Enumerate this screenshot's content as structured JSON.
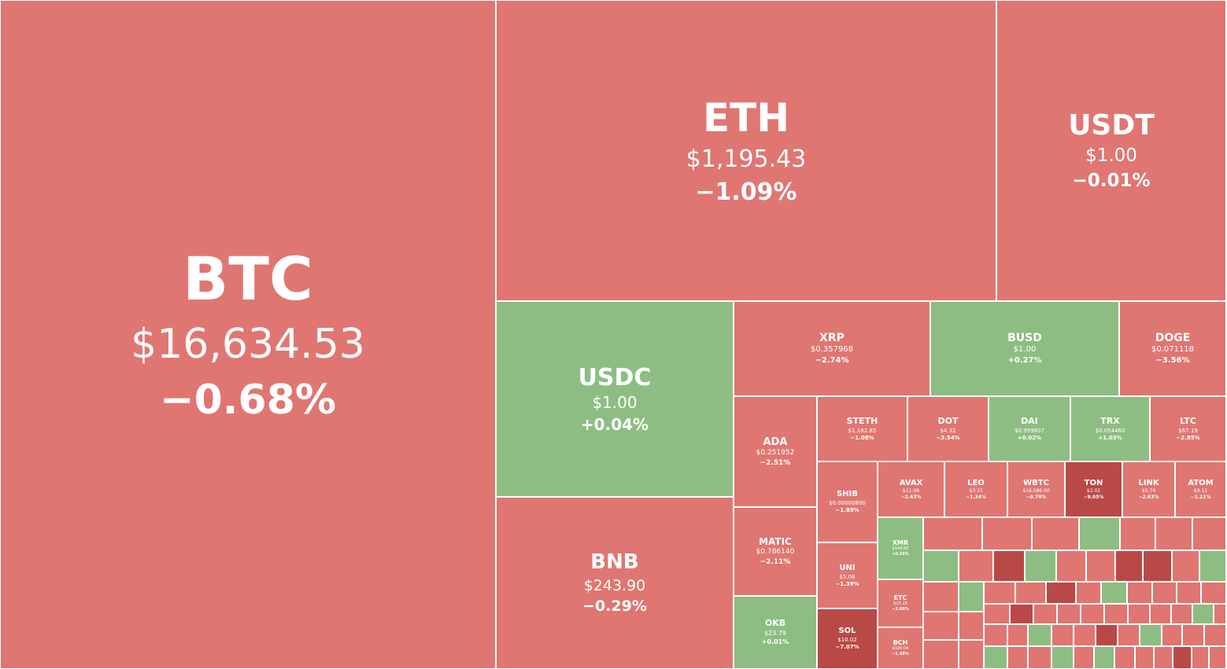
{
  "colors": {
    "negative": "#df7672",
    "negative_strong": "#b94947",
    "positive": "#8dbd83",
    "border": "#ffffff",
    "text": "#ffffff"
  },
  "chart_data": {
    "type": "treemap",
    "title": "",
    "size_measure": "market capitalization",
    "color_measure": "24h price change",
    "items": [
      {
        "symbol": "BTC",
        "price": "$16,634.53",
        "change": "−0.68%",
        "change_value": -0.68
      },
      {
        "symbol": "ETH",
        "price": "$1,195.43",
        "change": "−1.09%",
        "change_value": -1.09
      },
      {
        "symbol": "USDT",
        "price": "$1.00",
        "change": "−0.01%",
        "change_value": -0.01
      },
      {
        "symbol": "USDC",
        "price": "$1.00",
        "change": "+0.04%",
        "change_value": 0.04
      },
      {
        "symbol": "BNB",
        "price": "$243.90",
        "change": "−0.29%",
        "change_value": -0.29
      },
      {
        "symbol": "XRP",
        "price": "$0.357968",
        "change": "−2.74%",
        "change_value": -2.74
      },
      {
        "symbol": "BUSD",
        "price": "$1.00",
        "change": "+0.27%",
        "change_value": 0.27
      },
      {
        "symbol": "DOGE",
        "price": "$0.071118",
        "change": "−3.56%",
        "change_value": -3.56
      },
      {
        "symbol": "ADA",
        "price": "$0.251952",
        "change": "−2.51%",
        "change_value": -2.51
      },
      {
        "symbol": "MATIC",
        "price": "$0.786140",
        "change": "−2.11%",
        "change_value": -2.11
      },
      {
        "symbol": "OKB",
        "price": "$23.79",
        "change": "+0.01%",
        "change_value": 0.01
      },
      {
        "symbol": "STETH",
        "price": "$1,182.85",
        "change": "−1.08%",
        "change_value": -1.08
      },
      {
        "symbol": "DOT",
        "price": "$4.32",
        "change": "−3.54%",
        "change_value": -3.54
      },
      {
        "symbol": "DAI",
        "price": "$0.999807",
        "change": "+0.02%",
        "change_value": 0.02
      },
      {
        "symbol": "TRX",
        "price": "$0.054460",
        "change": "+1.03%",
        "change_value": 1.03
      },
      {
        "symbol": "LTC",
        "price": "$67.19",
        "change": "−2.85%",
        "change_value": -2.85
      },
      {
        "symbol": "SHIB",
        "price": "$0.00000800",
        "change": "−1.89%",
        "change_value": -1.89
      },
      {
        "symbol": "UNI",
        "price": "$5.08",
        "change": "−1.39%",
        "change_value": -1.39
      },
      {
        "symbol": "SOL",
        "price": "$10.02",
        "change": "−7.07%",
        "change_value": -7.07
      },
      {
        "symbol": "AVAX",
        "price": "$11.08",
        "change": "−2.43%",
        "change_value": -2.43
      },
      {
        "symbol": "LEO",
        "price": "$3.33",
        "change": "−1.34%",
        "change_value": -1.34
      },
      {
        "symbol": "WBTC",
        "price": "$16,586.00",
        "change": "−0.76%",
        "change_value": -0.76
      },
      {
        "symbol": "TON",
        "price": "$2.02",
        "change": "−9.05%",
        "change_value": -9.05
      },
      {
        "symbol": "LINK",
        "price": "$5.74",
        "change": "−2.63%",
        "change_value": -2.63
      },
      {
        "symbol": "ATOM",
        "price": "$9.12",
        "change": "−1.21%",
        "change_value": -1.21
      },
      {
        "symbol": "XMR",
        "price": "$144.90",
        "change": "+0.34%",
        "change_value": 0.34
      },
      {
        "symbol": "ETC",
        "price": "$15.28",
        "change": "−3.68%",
        "change_value": -3.68
      },
      {
        "symbol": "BCH",
        "price": "$100.04",
        "change": "−1.38%",
        "change_value": -1.38
      }
    ]
  }
}
